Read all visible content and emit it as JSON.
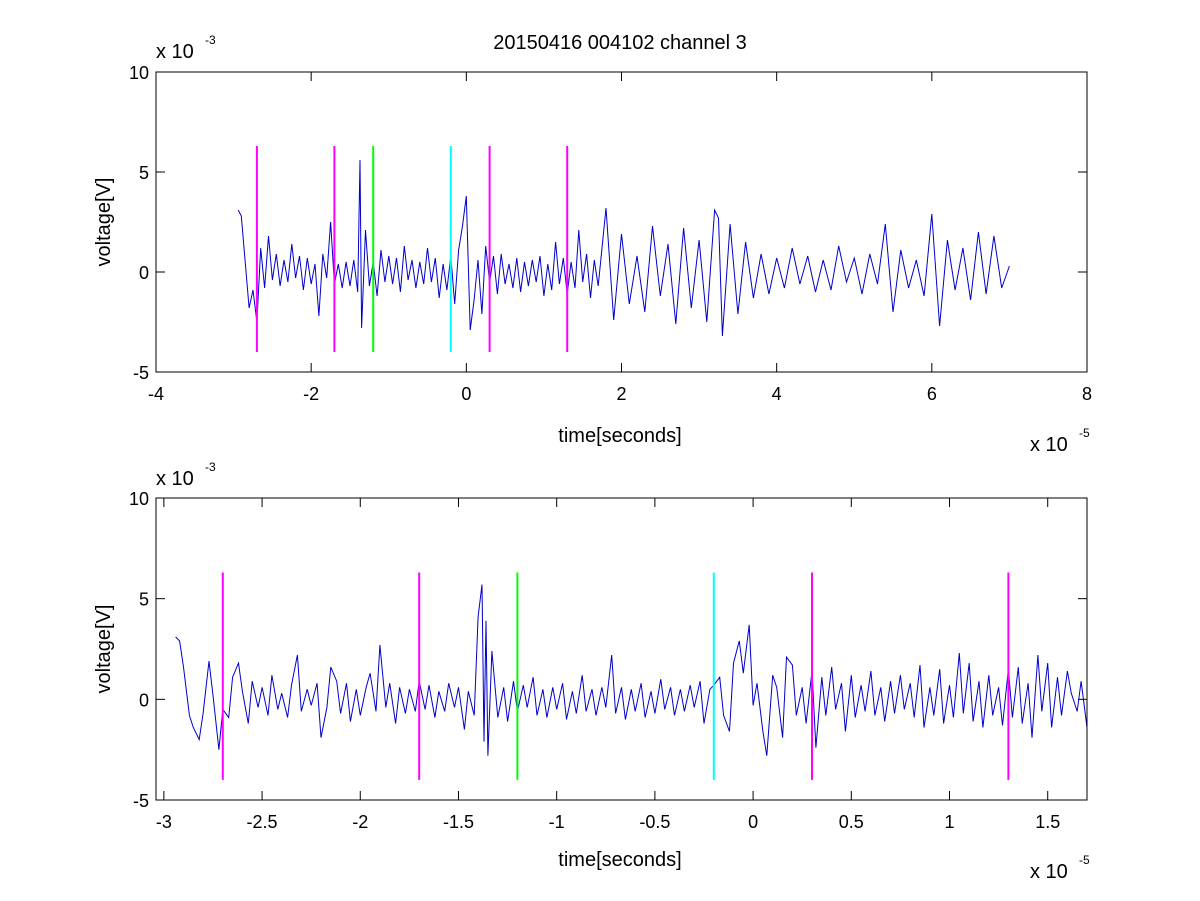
{
  "title": "20150416 004102 channel 3",
  "chart_data": [
    {
      "type": "line",
      "title": "20150416 004102 channel 3",
      "xlabel": "time[seconds]",
      "ylabel": "voltage[V]",
      "x_multiplier": "x 10",
      "x_exponent": "-5",
      "y_multiplier": "x 10",
      "y_exponent": "-3",
      "xlim": [
        -4,
        8
      ],
      "ylim": [
        -5,
        10
      ],
      "x_ticks": [
        -4,
        -2,
        0,
        2,
        4,
        6,
        8
      ],
      "x_tick_labels": [
        "-4",
        "-2",
        "0",
        "2",
        "4",
        "6",
        "8"
      ],
      "y_ticks": [
        -5,
        0,
        5,
        10
      ],
      "y_tick_labels": [
        "-5",
        "0",
        "5",
        "10"
      ],
      "grid": false,
      "signal": {
        "color": "#0000cc",
        "x_range": [
          -2.94,
          7.0
        ],
        "x": [
          -2.94,
          -2.9,
          -2.85,
          -2.8,
          -2.75,
          -2.7,
          -2.65,
          -2.6,
          -2.55,
          -2.5,
          -2.45,
          -2.4,
          -2.35,
          -2.3,
          -2.25,
          -2.2,
          -2.15,
          -2.1,
          -2.05,
          -2.0,
          -1.95,
          -1.9,
          -1.85,
          -1.8,
          -1.75,
          -1.7,
          -1.65,
          -1.6,
          -1.55,
          -1.5,
          -1.45,
          -1.4,
          -1.37,
          -1.35,
          -1.3,
          -1.25,
          -1.2,
          -1.15,
          -1.1,
          -1.05,
          -1.0,
          -0.95,
          -0.9,
          -0.85,
          -0.8,
          -0.75,
          -0.7,
          -0.65,
          -0.6,
          -0.55,
          -0.5,
          -0.45,
          -0.4,
          -0.35,
          -0.3,
          -0.25,
          -0.2,
          -0.15,
          -0.1,
          -0.05,
          0.0,
          0.05,
          0.1,
          0.15,
          0.2,
          0.25,
          0.3,
          0.35,
          0.4,
          0.45,
          0.5,
          0.55,
          0.6,
          0.65,
          0.7,
          0.75,
          0.8,
          0.85,
          0.9,
          0.95,
          1.0,
          1.05,
          1.1,
          1.15,
          1.2,
          1.25,
          1.3,
          1.35,
          1.4,
          1.45,
          1.5,
          1.55,
          1.6,
          1.65,
          1.7,
          1.8,
          1.9,
          2.0,
          2.1,
          2.2,
          2.3,
          2.4,
          2.5,
          2.6,
          2.7,
          2.8,
          2.9,
          3.0,
          3.1,
          3.2,
          3.25,
          3.3,
          3.4,
          3.5,
          3.6,
          3.7,
          3.8,
          3.9,
          4.0,
          4.1,
          4.2,
          4.3,
          4.4,
          4.5,
          4.6,
          4.7,
          4.8,
          4.9,
          5.0,
          5.1,
          5.2,
          5.3,
          5.4,
          5.5,
          5.6,
          5.7,
          5.8,
          5.9,
          6.0,
          6.1,
          6.2,
          6.3,
          6.4,
          6.5,
          6.6,
          6.7,
          6.8,
          6.9,
          7.0
        ],
        "y": [
          3.1,
          2.8,
          0.5,
          -1.8,
          -0.9,
          -2.5,
          1.2,
          -0.8,
          1.8,
          -0.4,
          0.9,
          -0.7,
          0.6,
          -0.5,
          1.4,
          -0.3,
          0.8,
          -0.9,
          0.7,
          -0.6,
          0.4,
          -2.2,
          0.9,
          -0.3,
          2.5,
          -0.6,
          0.4,
          -0.8,
          0.5,
          -0.7,
          0.6,
          -1.0,
          5.6,
          -2.8,
          2.1,
          -0.7,
          0.5,
          -1.2,
          1.1,
          -0.5,
          0.8,
          -0.6,
          0.7,
          -1.0,
          1.3,
          -0.4,
          0.6,
          -0.8,
          0.5,
          -0.6,
          1.2,
          -0.5,
          0.7,
          -1.3,
          0.4,
          -0.9,
          0.8,
          -1.6,
          1.1,
          2.3,
          3.8,
          -2.9,
          -1.4,
          0.6,
          -2.1,
          1.3,
          -0.5,
          0.8,
          -1.1,
          0.9,
          -0.6,
          0.4,
          -0.8,
          0.7,
          -1.0,
          0.5,
          -0.7,
          0.6,
          -0.5,
          0.8,
          -1.2,
          0.4,
          -0.9,
          1.5,
          -0.6,
          0.7,
          -1.1,
          0.5,
          -0.8,
          2.1,
          -0.5,
          0.9,
          -1.3,
          0.6,
          -0.7,
          3.2,
          -2.4,
          1.9,
          -1.6,
          0.8,
          -2.0,
          2.3,
          -1.2,
          1.4,
          -2.6,
          2.2,
          -1.8,
          1.6,
          -2.5,
          3.1,
          2.7,
          -3.2,
          2.4,
          -2.1,
          1.5,
          -1.3,
          0.9,
          -1.1,
          0.7,
          -0.8,
          1.2,
          -0.6,
          0.8,
          -1.0,
          0.6,
          -0.9,
          1.3,
          -0.5,
          0.7,
          -1.1,
          0.9,
          -0.6,
          2.4,
          -2.0,
          1.1,
          -0.8,
          0.6,
          -1.2,
          2.9,
          -2.7,
          1.6,
          -0.9,
          1.2,
          -1.4,
          2.0,
          -1.1,
          1.8,
          -0.8,
          0.3
        ]
      },
      "markers": [
        {
          "x": -2.7,
          "color": "#ff00ff"
        },
        {
          "x": -1.7,
          "color": "#ff00ff"
        },
        {
          "x": -1.2,
          "color": "#00ff00"
        },
        {
          "x": -0.2,
          "color": "#00ffff"
        },
        {
          "x": 0.3,
          "color": "#ff00ff"
        },
        {
          "x": 1.3,
          "color": "#ff00ff"
        }
      ],
      "marker_y_range": [
        -4,
        6.3
      ]
    },
    {
      "type": "line",
      "xlabel": "time[seconds]",
      "ylabel": "voltage[V]",
      "x_multiplier": "x 10",
      "x_exponent": "-5",
      "y_multiplier": "x 10",
      "y_exponent": "-3",
      "xlim": [
        -3.04,
        1.7
      ],
      "ylim": [
        -5,
        10
      ],
      "x_ticks": [
        -3,
        -2.5,
        -2,
        -1.5,
        -1,
        -0.5,
        0,
        0.5,
        1,
        1.5
      ],
      "x_tick_labels": [
        "-3",
        "-2.5",
        "-2",
        "-1.5",
        "-1",
        "-0.5",
        "0",
        "0.5",
        "1",
        "1.5"
      ],
      "y_ticks": [
        -5,
        0,
        5,
        10
      ],
      "y_tick_labels": [
        "-5",
        "0",
        "5",
        "10"
      ],
      "grid": false,
      "signal": {
        "color": "#0000cc",
        "x_range": [
          -2.94,
          1.7
        ],
        "x": [
          -2.94,
          -2.92,
          -2.9,
          -2.87,
          -2.85,
          -2.82,
          -2.8,
          -2.77,
          -2.75,
          -2.72,
          -2.7,
          -2.67,
          -2.65,
          -2.62,
          -2.6,
          -2.57,
          -2.55,
          -2.52,
          -2.5,
          -2.47,
          -2.45,
          -2.42,
          -2.4,
          -2.37,
          -2.35,
          -2.32,
          -2.3,
          -2.27,
          -2.25,
          -2.22,
          -2.2,
          -2.17,
          -2.15,
          -2.12,
          -2.1,
          -2.07,
          -2.05,
          -2.02,
          -2.0,
          -1.97,
          -1.95,
          -1.92,
          -1.9,
          -1.87,
          -1.85,
          -1.82,
          -1.8,
          -1.77,
          -1.75,
          -1.72,
          -1.7,
          -1.67,
          -1.65,
          -1.62,
          -1.6,
          -1.57,
          -1.55,
          -1.52,
          -1.5,
          -1.47,
          -1.45,
          -1.42,
          -1.4,
          -1.38,
          -1.37,
          -1.36,
          -1.35,
          -1.33,
          -1.3,
          -1.27,
          -1.25,
          -1.22,
          -1.2,
          -1.17,
          -1.15,
          -1.12,
          -1.1,
          -1.07,
          -1.05,
          -1.02,
          -1.0,
          -0.97,
          -0.95,
          -0.92,
          -0.9,
          -0.87,
          -0.85,
          -0.82,
          -0.8,
          -0.77,
          -0.75,
          -0.72,
          -0.7,
          -0.67,
          -0.65,
          -0.62,
          -0.6,
          -0.57,
          -0.55,
          -0.52,
          -0.5,
          -0.47,
          -0.45,
          -0.42,
          -0.4,
          -0.37,
          -0.35,
          -0.32,
          -0.3,
          -0.27,
          -0.25,
          -0.22,
          -0.2,
          -0.17,
          -0.15,
          -0.12,
          -0.1,
          -0.07,
          -0.05,
          -0.02,
          0.0,
          0.02,
          0.05,
          0.07,
          0.1,
          0.12,
          0.15,
          0.17,
          0.2,
          0.22,
          0.25,
          0.27,
          0.3,
          0.32,
          0.35,
          0.37,
          0.4,
          0.42,
          0.45,
          0.47,
          0.5,
          0.52,
          0.55,
          0.57,
          0.6,
          0.62,
          0.65,
          0.67,
          0.7,
          0.72,
          0.75,
          0.77,
          0.8,
          0.82,
          0.85,
          0.87,
          0.9,
          0.92,
          0.95,
          0.97,
          1.0,
          1.02,
          1.05,
          1.07,
          1.1,
          1.12,
          1.15,
          1.17,
          1.2,
          1.22,
          1.25,
          1.27,
          1.3,
          1.32,
          1.35,
          1.37,
          1.4,
          1.42,
          1.45,
          1.47,
          1.5,
          1.52,
          1.55,
          1.57,
          1.6,
          1.62,
          1.65,
          1.67,
          1.7
        ],
        "y": [
          3.1,
          2.9,
          1.6,
          -0.8,
          -1.4,
          -2.0,
          -0.7,
          1.9,
          0.2,
          -2.5,
          -0.5,
          -0.9,
          1.1,
          1.8,
          0.4,
          -1.2,
          0.9,
          -0.4,
          0.6,
          -0.8,
          1.2,
          -0.5,
          0.3,
          -0.9,
          0.7,
          2.2,
          -0.6,
          0.5,
          -0.3,
          0.8,
          -1.9,
          -0.4,
          1.6,
          0.9,
          -0.7,
          0.8,
          -1.1,
          0.5,
          -0.8,
          0.6,
          1.3,
          -0.6,
          2.7,
          -0.4,
          0.8,
          -1.2,
          0.6,
          -0.7,
          0.5,
          -0.6,
          0.9,
          -0.5,
          0.7,
          -0.9,
          0.4,
          -0.6,
          0.8,
          -0.4,
          0.6,
          -1.5,
          0.4,
          -0.8,
          4.1,
          5.7,
          -2.1,
          3.9,
          -2.8,
          2.4,
          -0.9,
          0.6,
          -1.1,
          0.9,
          -0.6,
          0.7,
          -0.4,
          1.1,
          -0.8,
          0.5,
          -0.9,
          0.6,
          -0.5,
          0.8,
          -1.0,
          0.4,
          -0.7,
          1.2,
          -0.6,
          0.5,
          -0.8,
          0.6,
          -0.4,
          2.2,
          -0.7,
          0.6,
          -1.0,
          0.5,
          -0.6,
          0.8,
          -0.9,
          0.4,
          -0.7,
          1.0,
          -0.5,
          0.6,
          -0.8,
          0.5,
          -0.6,
          0.7,
          -0.4,
          0.9,
          -1.2,
          0.5,
          0.7,
          1.1,
          -0.8,
          -1.6,
          1.8,
          2.9,
          1.3,
          3.7,
          -0.3,
          0.8,
          -1.6,
          -2.8,
          1.2,
          0.6,
          -1.9,
          2.1,
          1.7,
          -0.8,
          0.6,
          -1.2,
          1.4,
          -2.4,
          1.1,
          -0.8,
          1.6,
          -0.5,
          0.8,
          -1.6,
          1.2,
          -0.9,
          0.7,
          -0.6,
          1.4,
          -0.8,
          0.6,
          -1.1,
          0.9,
          -0.7,
          1.2,
          -0.5,
          0.8,
          -0.9,
          1.7,
          -1.4,
          0.6,
          -0.8,
          1.5,
          -1.2,
          0.7,
          -0.9,
          2.3,
          -0.7,
          1.8,
          -1.1,
          0.9,
          -1.4,
          1.2,
          -0.8,
          0.6,
          -1.3,
          1.5,
          -0.9,
          1.6,
          -1.2,
          0.8,
          -1.9,
          2.2,
          -0.6,
          1.8,
          -1.4,
          1.1,
          -0.8,
          1.4,
          0.3,
          -0.6,
          0.9,
          -1.4
        ]
      },
      "markers": [
        {
          "x": -2.7,
          "color": "#ff00ff"
        },
        {
          "x": -1.7,
          "color": "#ff00ff"
        },
        {
          "x": -1.2,
          "color": "#00ff00"
        },
        {
          "x": -0.2,
          "color": "#00ffff"
        },
        {
          "x": 0.3,
          "color": "#ff00ff"
        },
        {
          "x": 1.3,
          "color": "#ff00ff"
        }
      ],
      "marker_y_range": [
        -4,
        6.3
      ]
    }
  ]
}
